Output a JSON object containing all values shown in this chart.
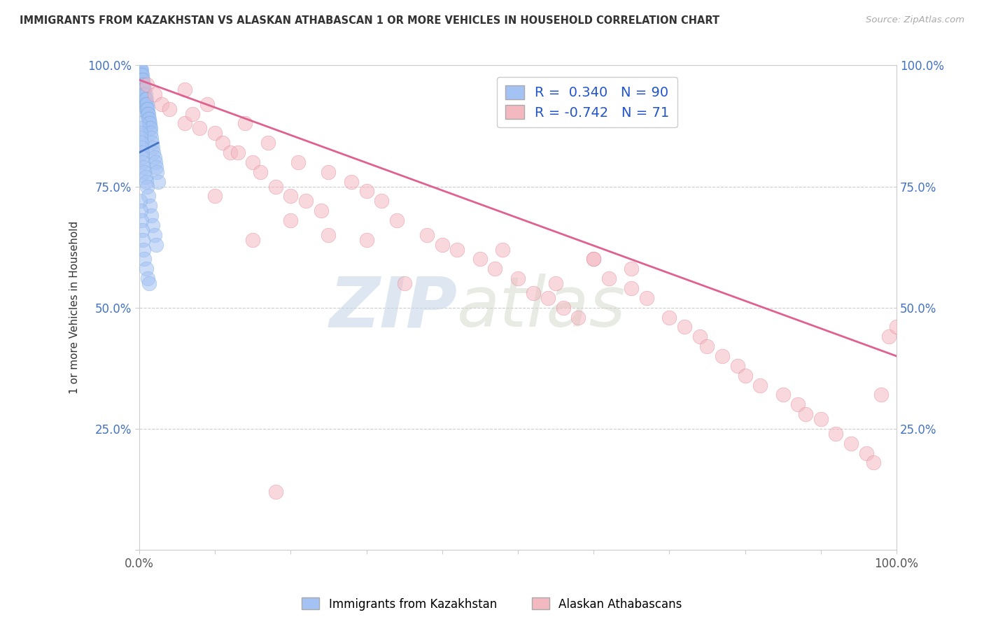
{
  "title": "IMMIGRANTS FROM KAZAKHSTAN VS ALASKAN ATHABASCAN 1 OR MORE VEHICLES IN HOUSEHOLD CORRELATION CHART",
  "source": "Source: ZipAtlas.com",
  "ylabel": "1 or more Vehicles in Household",
  "xlabel": "",
  "xlim": [
    0.0,
    1.0
  ],
  "ylim": [
    0.0,
    1.0
  ],
  "blue_color": "#a4c2f4",
  "pink_color": "#f4b8c1",
  "pink_line_color": "#e06090",
  "legend_blue_R": "0.340",
  "legend_blue_N": "90",
  "legend_pink_R": "-0.742",
  "legend_pink_N": "71",
  "legend_label_blue": "Immigrants from Kazakhstan",
  "legend_label_pink": "Alaskan Athabascans",
  "watermark_zip": "ZIP",
  "watermark_atlas": "atlas",
  "background_color": "#ffffff",
  "blue_scatter_x": [
    0.0005,
    0.001,
    0.001,
    0.001,
    0.001,
    0.0015,
    0.0015,
    0.002,
    0.002,
    0.002,
    0.002,
    0.002,
    0.003,
    0.003,
    0.003,
    0.003,
    0.003,
    0.004,
    0.004,
    0.004,
    0.004,
    0.004,
    0.005,
    0.005,
    0.005,
    0.005,
    0.006,
    0.006,
    0.006,
    0.007,
    0.007,
    0.007,
    0.008,
    0.008,
    0.008,
    0.009,
    0.009,
    0.009,
    0.01,
    0.01,
    0.01,
    0.011,
    0.011,
    0.012,
    0.012,
    0.013,
    0.013,
    0.014,
    0.014,
    0.015,
    0.015,
    0.016,
    0.017,
    0.018,
    0.019,
    0.02,
    0.021,
    0.022,
    0.023,
    0.025,
    0.0005,
    0.001,
    0.0015,
    0.002,
    0.003,
    0.003,
    0.004,
    0.004,
    0.005,
    0.006,
    0.007,
    0.008,
    0.009,
    0.01,
    0.012,
    0.014,
    0.016,
    0.018,
    0.02,
    0.022,
    0.001,
    0.002,
    0.003,
    0.004,
    0.005,
    0.006,
    0.007,
    0.009,
    0.011,
    0.013
  ],
  "blue_scatter_y": [
    0.99,
    0.99,
    0.98,
    0.97,
    0.96,
    0.99,
    0.98,
    0.99,
    0.98,
    0.97,
    0.96,
    0.95,
    0.99,
    0.98,
    0.97,
    0.96,
    0.95,
    0.98,
    0.97,
    0.96,
    0.95,
    0.94,
    0.97,
    0.96,
    0.95,
    0.94,
    0.96,
    0.95,
    0.94,
    0.95,
    0.94,
    0.93,
    0.94,
    0.93,
    0.92,
    0.93,
    0.92,
    0.91,
    0.92,
    0.91,
    0.9,
    0.91,
    0.9,
    0.9,
    0.89,
    0.89,
    0.88,
    0.88,
    0.87,
    0.87,
    0.86,
    0.85,
    0.84,
    0.83,
    0.82,
    0.81,
    0.8,
    0.79,
    0.78,
    0.76,
    0.88,
    0.87,
    0.86,
    0.85,
    0.84,
    0.83,
    0.82,
    0.81,
    0.8,
    0.79,
    0.78,
    0.77,
    0.76,
    0.75,
    0.73,
    0.71,
    0.69,
    0.67,
    0.65,
    0.63,
    0.72,
    0.7,
    0.68,
    0.66,
    0.64,
    0.62,
    0.6,
    0.58,
    0.56,
    0.55
  ],
  "pink_scatter_x": [
    0.01,
    0.02,
    0.03,
    0.04,
    0.06,
    0.07,
    0.08,
    0.1,
    0.11,
    0.12,
    0.13,
    0.15,
    0.16,
    0.18,
    0.2,
    0.22,
    0.24,
    0.06,
    0.09,
    0.14,
    0.17,
    0.21,
    0.25,
    0.28,
    0.3,
    0.32,
    0.34,
    0.38,
    0.4,
    0.42,
    0.45,
    0.47,
    0.5,
    0.52,
    0.54,
    0.56,
    0.58,
    0.6,
    0.62,
    0.65,
    0.67,
    0.7,
    0.72,
    0.74,
    0.75,
    0.77,
    0.79,
    0.8,
    0.82,
    0.85,
    0.87,
    0.88,
    0.9,
    0.92,
    0.94,
    0.96,
    0.97,
    0.98,
    0.99,
    1.0,
    0.15,
    0.2,
    0.25,
    0.3,
    0.18,
    0.35,
    0.1,
    0.55,
    0.48,
    0.6,
    0.65
  ],
  "pink_scatter_y": [
    0.96,
    0.94,
    0.92,
    0.91,
    0.88,
    0.9,
    0.87,
    0.86,
    0.84,
    0.82,
    0.82,
    0.8,
    0.78,
    0.75,
    0.73,
    0.72,
    0.7,
    0.95,
    0.92,
    0.88,
    0.84,
    0.8,
    0.78,
    0.76,
    0.74,
    0.72,
    0.68,
    0.65,
    0.63,
    0.62,
    0.6,
    0.58,
    0.56,
    0.53,
    0.52,
    0.5,
    0.48,
    0.6,
    0.56,
    0.54,
    0.52,
    0.48,
    0.46,
    0.44,
    0.42,
    0.4,
    0.38,
    0.36,
    0.34,
    0.32,
    0.3,
    0.28,
    0.27,
    0.24,
    0.22,
    0.2,
    0.18,
    0.32,
    0.44,
    0.46,
    0.64,
    0.68,
    0.65,
    0.64,
    0.12,
    0.55,
    0.73,
    0.55,
    0.62,
    0.6,
    0.58
  ],
  "pink_line_start_x": 0.0,
  "pink_line_start_y": 0.97,
  "pink_line_end_x": 1.0,
  "pink_line_end_y": 0.4
}
